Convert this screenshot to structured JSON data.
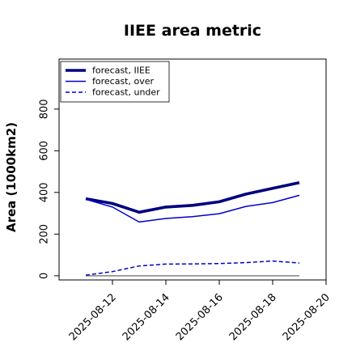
{
  "chart_data": {
    "type": "line",
    "title": "IIEE area metric",
    "xlabel": "",
    "ylabel": "Area (1000km2)",
    "x": [
      "2025-08-11",
      "2025-08-12",
      "2025-08-13",
      "2025-08-14",
      "2025-08-15",
      "2025-08-16",
      "2025-08-17",
      "2025-08-18",
      "2025-08-19"
    ],
    "xlim": [
      "2025-08-10",
      "2025-08-20"
    ],
    "ylim": [
      -20,
      1040
    ],
    "yticks": [
      0,
      200,
      400,
      600,
      800
    ],
    "xticks": [
      "2025-08-12",
      "2025-08-14",
      "2025-08-16",
      "2025-08-18",
      "2025-08-20"
    ],
    "highlight_tick": "2025-08-12",
    "highlight_color": "#2e8b2e",
    "grid": false,
    "legend_position": "top-left",
    "baseline": 0,
    "series": [
      {
        "name": "forecast, IIEE",
        "color": "#00007f",
        "style": "solid",
        "weight": "thick",
        "values": [
          370,
          347,
          305,
          330,
          338,
          355,
          392,
          420,
          447
        ]
      },
      {
        "name": "forecast, over",
        "color": "#0000cd",
        "style": "solid",
        "weight": "normal",
        "values": [
          367,
          330,
          258,
          275,
          284,
          298,
          333,
          351,
          386
        ]
      },
      {
        "name": "forecast, under",
        "color": "#0000cd",
        "style": "dashed",
        "weight": "normal",
        "values": [
          3,
          20,
          47,
          56,
          57,
          59,
          63,
          71,
          61
        ]
      }
    ]
  }
}
